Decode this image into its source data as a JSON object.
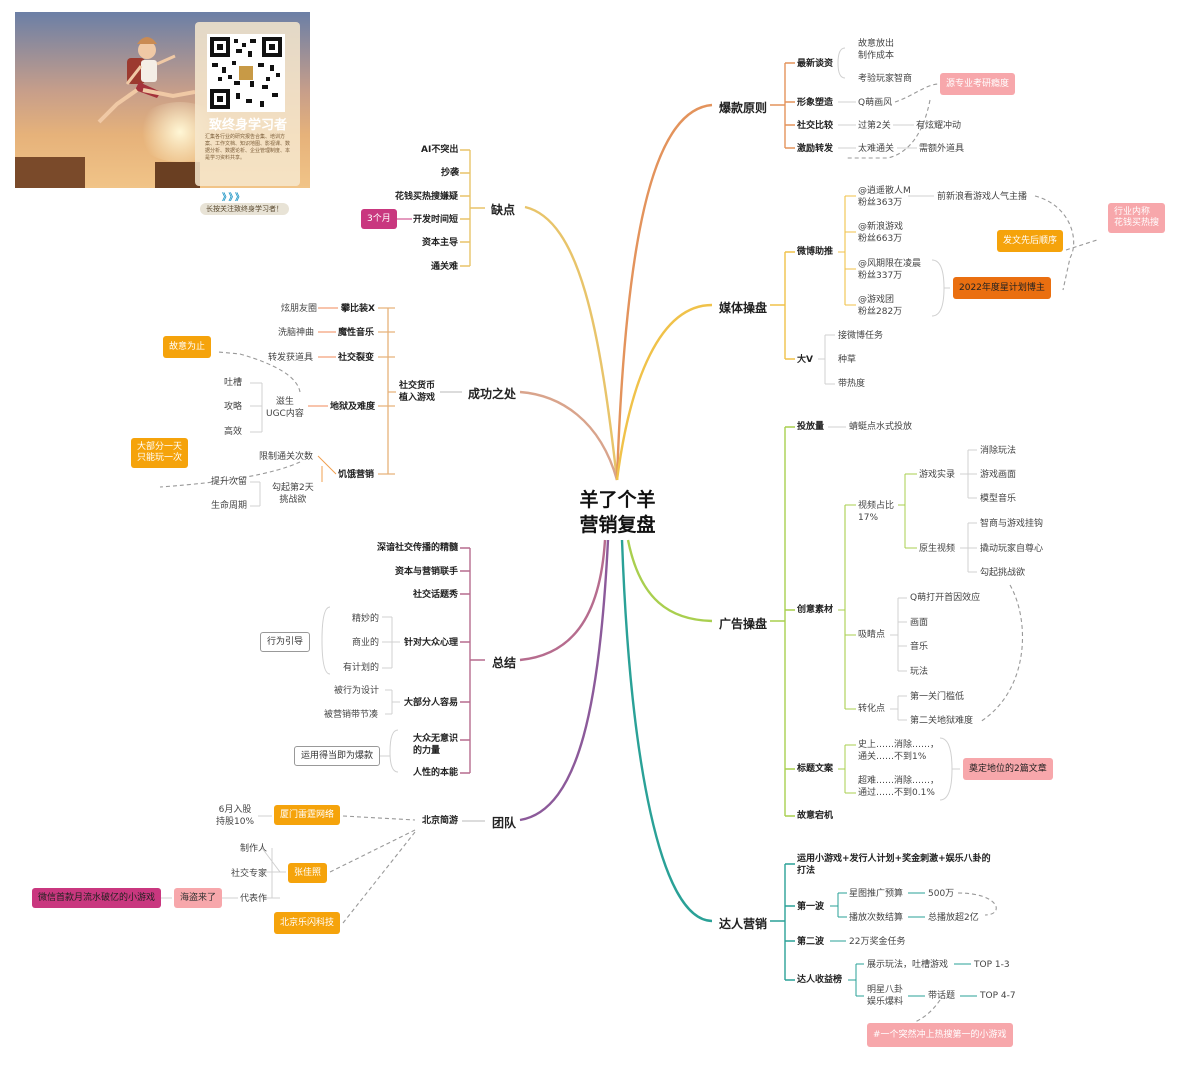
{
  "promo": {
    "title": "致终身学习者",
    "desc": "汇集各行业的研究报告合集、培训方案、工作文档、知识地图、影视课、数据分析、数据论析、企业管理制度、本是学习资料共享。",
    "follow": "长按关注致终身学习者！",
    "chevrons": "》》》"
  },
  "center": {
    "line1": "羊了个羊",
    "line2": "营销复盘"
  },
  "branches": {
    "que_dian": "缺点",
    "cheng_gong": "成功之处",
    "zong_jie": "总结",
    "tuan_dui": "团队",
    "bao_kuan": "爆款原则",
    "mei_ti": "媒体操盘",
    "guang_gao": "广告操盘",
    "da_ren": "达人营销"
  },
  "que_dian": {
    "items": [
      "AI不突出",
      "抄袭",
      "花钱买热搜嫌疑",
      "开发时间短",
      "资本主导",
      "通关难"
    ],
    "tag": "3个月"
  },
  "cheng_gong": {
    "hub": "社交货币\n植入游戏",
    "pan": "攀比装X",
    "pan_leaf": "炫朋友圈",
    "mo": "魔性音乐",
    "mo_leaf": "洗脑神曲",
    "she": "社交裂变",
    "she_leaf": "转发获道具",
    "di": "地狱及难度",
    "di_mid": "滋生\nUGC内容",
    "di_leaves": [
      "吐槽",
      "攻略",
      "高效"
    ],
    "ji": "饥饿营销",
    "ji_leaf1": "限制通关次数",
    "ji_mid": "勾起第2天\n挑战欲",
    "ji_leaves": [
      "提升次留",
      "生命周期"
    ],
    "box_guyi": "故意为止",
    "box_dabufen": "大部分一天\n只能玩一次"
  },
  "zong_jie": {
    "items": [
      "深谙社交传播的精髓",
      "资本与营销联手",
      "社交话题秀"
    ],
    "zhen": "针对大众心理",
    "zhen_leaves": [
      "精妙的",
      "商业的",
      "有计划的"
    ],
    "zhen_box": "行为引导",
    "da": "大部分人容易",
    "da_leaves": [
      "被行为设计",
      "被营销带节凑"
    ],
    "wu": "大众无意识\n的力量",
    "wu_box": "运用得当即为爆款",
    "ren": "人性的本能"
  },
  "tuan_dui": {
    "hub": "北京简游",
    "xiamen": "厦门雷霆网络",
    "xiamen_leaf": "6月入股\n持股10%",
    "zhang": "张佳照",
    "zhang_leaves": [
      "制作人",
      "社交专家",
      "代表作"
    ],
    "haidao": "海盗来了",
    "weixin": "微信首款月流水破亿的小游戏",
    "lexian": "北京乐闪科技"
  },
  "bao_kuan": {
    "zui": "最新谈资",
    "zui_leaves": [
      "故意放出\n制作成本",
      "考验玩家智商"
    ],
    "xing": "形象塑造",
    "xing_leaf": "Q萌画风",
    "she": "社交比较",
    "she_leaf": "过第2关",
    "she_leaf2": "有炫耀冲动",
    "ji": "激励转发",
    "ji_leaf": "太难通关",
    "ji_leaf2": "需额外道具",
    "box": "源专业考研瘾度"
  },
  "mei_ti": {
    "wei": "微博助推",
    "accounts": [
      "@逍遥散人M\n粉丝363万",
      "@新浪游戏\n粉丝663万",
      "@风期限在凌晨\n粉丝337万",
      "@游戏团\n粉丝282万"
    ],
    "acct_leaf": "前新浪看游戏人气主播",
    "box_fawen": "发文先后顺序",
    "box_2022": "2022年度星计划博主",
    "box_hangye": "行业内称\n花钱买热搜",
    "dav": "大V",
    "dav_leaves": [
      "接微博任务",
      "种草",
      "带热度"
    ]
  },
  "guang_gao": {
    "tou": "投放量",
    "tou_leaf": "蜻蜓点水式投放",
    "chuang": "创意素材",
    "video": "视频占比\n17%",
    "shi": "游戏实录",
    "shi_leaves": [
      "消除玩法",
      "游戏画面",
      "模型音乐"
    ],
    "yuan": "原生视频",
    "yuan_leaves": [
      "智商与游戏挂钩",
      "撬动玩家自尊心",
      "勾起挑战欲"
    ],
    "xi": "吸睛点",
    "xi_leaves": [
      "Q萌打开首因效应",
      "画面",
      "音乐",
      "玩法"
    ],
    "zhuan": "转化点",
    "zhuan_leaves": [
      "第一关门槛低",
      "第二关地狱难度"
    ],
    "biao": "标题文案",
    "biao_leaves": [
      "史上……消除……，\n通关……不到1%",
      "超难……消除……，\n通过……不到0.1%"
    ],
    "biao_box": "奠定地位的2篇文章",
    "gu": "故意宕机"
  },
  "da_ren": {
    "intro": "运用小游戏+发行人计划+奖金刺激+娱乐八卦的\n打法",
    "bo1": "第一波",
    "bo1_a": "星图推广预算",
    "bo1_a_leaf": "500万",
    "bo1_b": "播放次数结算",
    "bo1_b_leaf": "总播放超2亿",
    "bo2": "第二波",
    "bo2_leaf": "22万奖金任务",
    "bang": "达人收益榜",
    "bang_a": "展示玩法，吐槽游戏",
    "bang_a_leaf": "TOP 1-3",
    "bang_b": "明星八卦\n娱乐爆料",
    "bang_b_mid": "带话题",
    "bang_b_leaf": "TOP 4-7",
    "box": "#一个突然冲上热搜第一的小游戏"
  },
  "colors": {
    "que": "#e8c46a",
    "cheng": "#d9a48c",
    "zong": "#b66c8e",
    "tuan": "#8c5a9a",
    "bao": "#e3935c",
    "mei": "#f0c24a",
    "guang": "#a9cf4f",
    "da": "#2aa197"
  }
}
